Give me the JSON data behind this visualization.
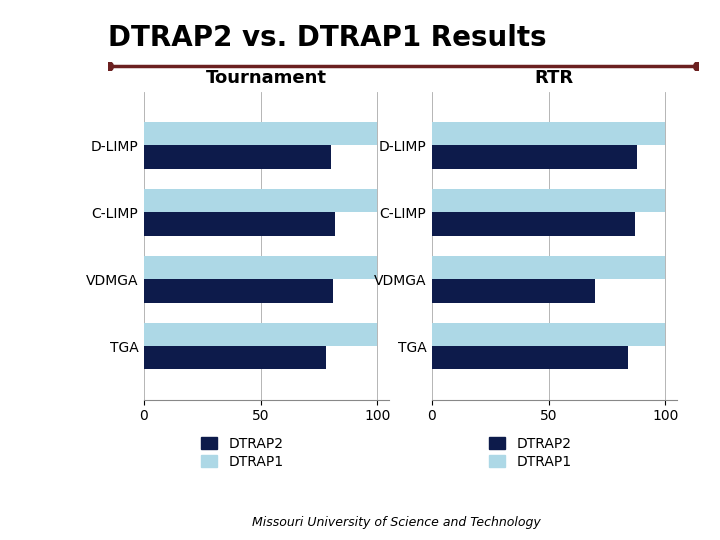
{
  "title": "DTRAP2 vs. DTRAP1 Results",
  "subtitle": "Missouri University of Science and Technology",
  "categories": [
    "D-LIMP",
    "C-LIMP",
    "VDMGA",
    "TGA"
  ],
  "tournament": {
    "title": "Tournament",
    "dtrap2": [
      80,
      82,
      81,
      78
    ],
    "dtrap1": [
      100,
      100,
      100,
      100
    ]
  },
  "rtr": {
    "title": "RTR",
    "dtrap2": [
      88,
      87,
      70,
      84
    ],
    "dtrap1": [
      100,
      100,
      100,
      100
    ]
  },
  "color_dtrap2": "#0d1b4b",
  "color_dtrap1": "#add8e6",
  "xlim": [
    0,
    110
  ],
  "xticks": [
    0,
    50,
    100
  ],
  "background_color": "#ffffff",
  "title_fontsize": 20,
  "subtitle_fontsize": 9,
  "axis_title_fontsize": 13,
  "tick_fontsize": 10,
  "label_fontsize": 10,
  "legend_fontsize": 10,
  "bar_height": 0.35,
  "separator_color": "#6b2020",
  "separator_linewidth": 2.5
}
